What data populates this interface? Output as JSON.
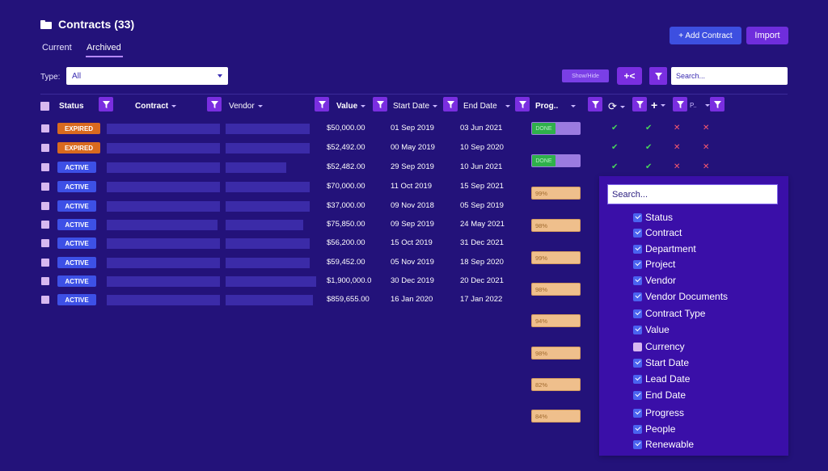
{
  "header": {
    "title": "Contracts (33)",
    "tabs": [
      "Current",
      "Archived"
    ],
    "add_contract": "+ Add Contract",
    "import": "Import"
  },
  "filters": {
    "type_label": "Type:",
    "type_value": "All",
    "show_hide": "Show/Hide",
    "collapse_label": "+<",
    "search_placeholder": "Search..."
  },
  "columns": {
    "status": "Status",
    "contract": "Contract",
    "vendor": "Vendor",
    "value": "Value",
    "start_date": "Start Date",
    "end_date": "End Date",
    "progress": "Prog..",
    "people": "P.."
  },
  "rows": [
    {
      "status": "EXPIRED",
      "kind": "expired",
      "value": "$50,000.00",
      "start": "01 Sep 2019",
      "end": "03 Jun 2021",
      "progress": "DONE",
      "checks": [
        "check",
        "check",
        "x",
        "x"
      ]
    },
    {
      "status": "EXPIRED",
      "kind": "expired",
      "value": "$52,492.00",
      "start": "00 May 2019",
      "end": "10 Sep 2020",
      "progress": "DONE",
      "checks": [
        "check",
        "check",
        "x",
        "x"
      ]
    },
    {
      "status": "ACTIVE",
      "kind": "active",
      "value": "$52,482.00",
      "start": "29 Sep 2019",
      "end": "10 Jun 2021",
      "progress": "99%",
      "checks": [
        "check",
        "check",
        "x",
        "x"
      ]
    },
    {
      "status": "ACTIVE",
      "kind": "active",
      "value": "$70,000.00",
      "start": "11 Oct 2019",
      "end": "15 Sep 2021",
      "progress": "98%",
      "checks": []
    },
    {
      "status": "ACTIVE",
      "kind": "active",
      "value": "$37,000.00",
      "start": "09 Nov 2018",
      "end": "05 Sep 2019",
      "progress": "99%",
      "checks": []
    },
    {
      "status": "ACTIVE",
      "kind": "active",
      "value": "$75,850.00",
      "start": "09 Sep 2019",
      "end": "24 May 2021",
      "progress": "98%",
      "checks": []
    },
    {
      "status": "ACTIVE",
      "kind": "active",
      "value": "$56,200.00",
      "start": "15 Oct 2019",
      "end": "31 Dec 2021",
      "progress": "94%",
      "checks": []
    },
    {
      "status": "ACTIVE",
      "kind": "active",
      "value": "$59,452.00",
      "start": "05 Nov 2019",
      "end": "18 Sep 2020",
      "progress": "98%",
      "checks": []
    },
    {
      "status": "ACTIVE",
      "kind": "active",
      "value": "$1,900,000.0",
      "start": "30 Dec 2019",
      "end": "20 Dec 2021",
      "progress": "82%",
      "checks": []
    },
    {
      "status": "ACTIVE",
      "kind": "active",
      "value": "$859,655.00",
      "start": "16 Jan 2020",
      "end": "17 Jan 2022",
      "progress": "84%",
      "checks": []
    }
  ],
  "column_panel": {
    "search_placeholder": "Search...",
    "items": [
      {
        "label": "Status",
        "checked": true
      },
      {
        "label": "Contract",
        "checked": true
      },
      {
        "label": "Department",
        "checked": true
      },
      {
        "label": "Project",
        "checked": true
      },
      {
        "label": "Vendor",
        "checked": true
      },
      {
        "label": "Vendor Documents",
        "checked": true
      },
      {
        "label": "Contract Type",
        "checked": true
      },
      {
        "label": "Value",
        "checked": true
      },
      {
        "label": "Currency",
        "checked": false
      },
      {
        "label": "Start Date",
        "checked": true
      },
      {
        "label": "Lead Date",
        "checked": true
      },
      {
        "label": "End Date",
        "checked": true
      },
      {
        "label": "Progress",
        "checked": true
      },
      {
        "label": "People",
        "checked": true
      },
      {
        "label": "Renewable",
        "checked": true
      }
    ]
  },
  "colors": {
    "background": "#23127a",
    "accent": "#7a2ee0",
    "expired": "#d96a1f",
    "active": "#3d50e6"
  }
}
